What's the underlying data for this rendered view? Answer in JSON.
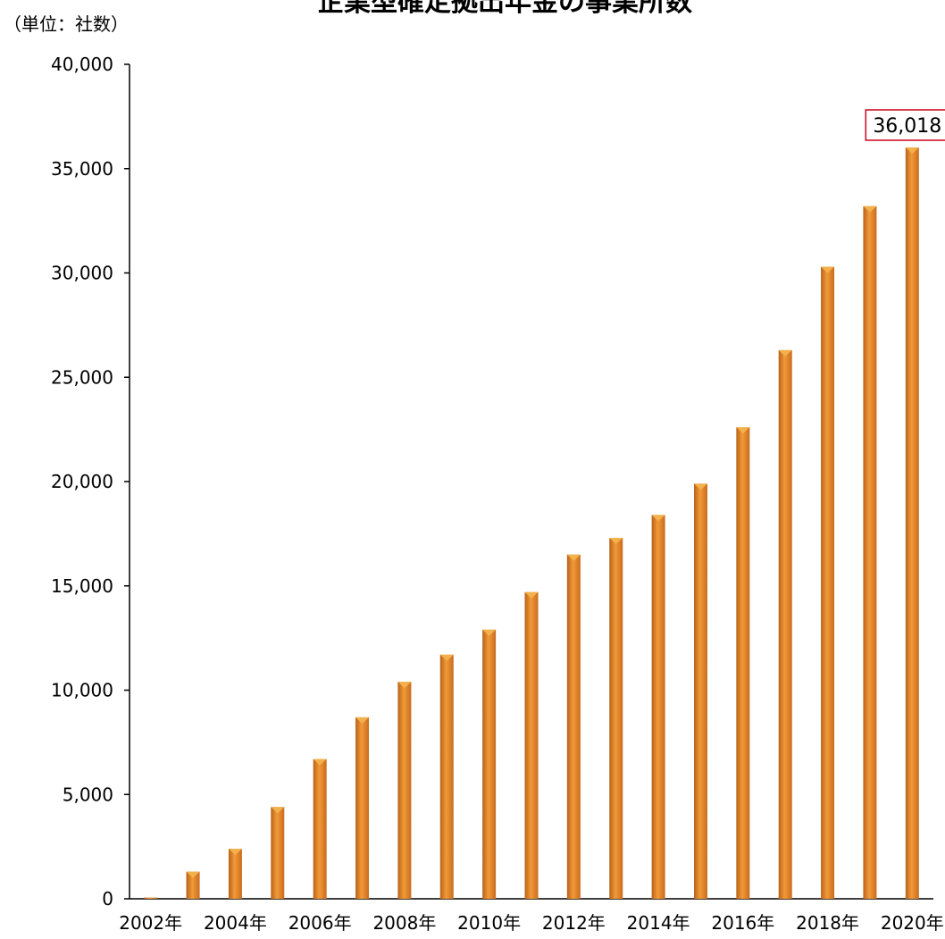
{
  "chart_data": {
    "type": "bar",
    "title": "企業型確定拠出年金の事業所数",
    "unit_label": "（単位：社数）",
    "xlabel": "",
    "ylabel": "",
    "ylim": [
      0,
      40000
    ],
    "y_ticks": [
      0,
      5000,
      10000,
      15000,
      20000,
      25000,
      30000,
      35000,
      40000
    ],
    "y_tick_labels": [
      "0",
      "5,000",
      "10,000",
      "15,000",
      "20,000",
      "25,000",
      "30,000",
      "35,000",
      "40,000"
    ],
    "categories": [
      "2002年",
      "2003年",
      "2004年",
      "2005年",
      "2006年",
      "2007年",
      "2008年",
      "2009年",
      "2010年",
      "2011年",
      "2012年",
      "2013年",
      "2014年",
      "2015年",
      "2016年",
      "2017年",
      "2018年",
      "2019年",
      "2020年"
    ],
    "x_tick_labels_shown": [
      "2002年",
      "",
      "2004年",
      "",
      "2006年",
      "",
      "2008年",
      "",
      "2010年",
      "",
      "2012年",
      "",
      "2014年",
      "",
      "2016年",
      "",
      "2018年",
      "",
      "2020年"
    ],
    "values": [
      60,
      1300,
      2400,
      4400,
      6700,
      8700,
      10400,
      11700,
      12900,
      14700,
      16500,
      17300,
      18400,
      19900,
      22600,
      26300,
      30300,
      33200,
      36018
    ],
    "highlight_index": 18,
    "highlight_label": "36,018",
    "grid": false,
    "colors": {
      "bar": "#e8842a",
      "bar_top": "#f3b14c",
      "highlight_border": "#d0021b",
      "axis": "#000000"
    }
  }
}
